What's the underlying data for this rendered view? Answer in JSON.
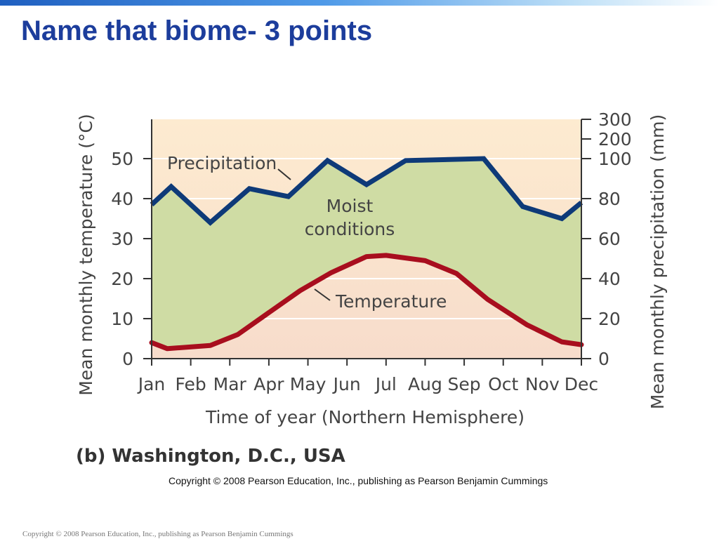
{
  "slide": {
    "title": "Name that biome- 3 points",
    "footer": "Copyright © 2008 Pearson Education, Inc., publishing as Pearson Benjamin Cummings"
  },
  "chart_data": {
    "type": "line",
    "panel_label": "(b) Washington, D.C., USA",
    "copyright": "Copyright © 2008 Pearson Education, Inc., publishing as Pearson Benjamin Cummings",
    "xlabel": "Time of year (Northern Hemisphere)",
    "categories": [
      "Jan",
      "Feb",
      "Mar",
      "Apr",
      "May",
      "Jun",
      "Jul",
      "Aug",
      "Sep",
      "Oct",
      "Nov",
      "Dec"
    ],
    "ylabel_left": "Mean monthly temperature (°C)",
    "ylabel_right": "Mean monthly precipitation (mm)",
    "left_ticks": [
      "0",
      "10",
      "20",
      "30",
      "40",
      "50"
    ],
    "right_ticks": [
      "0",
      "20",
      "40",
      "60",
      "80",
      "100",
      "200",
      "300"
    ],
    "ylim_left": [
      0,
      60
    ],
    "series": [
      {
        "name": "Precipitation",
        "axis": "right",
        "x": [
          0,
          0.5,
          1.5,
          2.5,
          3.5,
          4.5,
          5.5,
          6.5,
          8.5,
          9.5,
          10.5,
          11.0
        ],
        "values": [
          77,
          86,
          68,
          85,
          81,
          99,
          87,
          99,
          100,
          76,
          70,
          78
        ]
      },
      {
        "name": "Temperature",
        "axis": "left",
        "x": [
          0,
          0.4,
          1.5,
          2.2,
          3.0,
          3.8,
          4.6,
          5.5,
          6.0,
          7.0,
          7.8,
          8.6,
          9.6,
          10.5,
          11.0
        ],
        "values": [
          4,
          2.5,
          3.3,
          6,
          11.5,
          17,
          21.5,
          25.5,
          25.8,
          24.5,
          21.3,
          14.8,
          8.5,
          4.2,
          3.5
        ]
      }
    ],
    "annotations": [
      {
        "text": "Precipitation"
      },
      {
        "text": "Moist"
      },
      {
        "text": "conditions"
      },
      {
        "text": "Temperature"
      }
    ],
    "colors": {
      "precipitation": "#0e3a78",
      "temperature": "#a80e1e",
      "moist_fill": "#cfdca4",
      "background_top": "#fdebd0",
      "background_bottom": "#f7dccb"
    }
  }
}
